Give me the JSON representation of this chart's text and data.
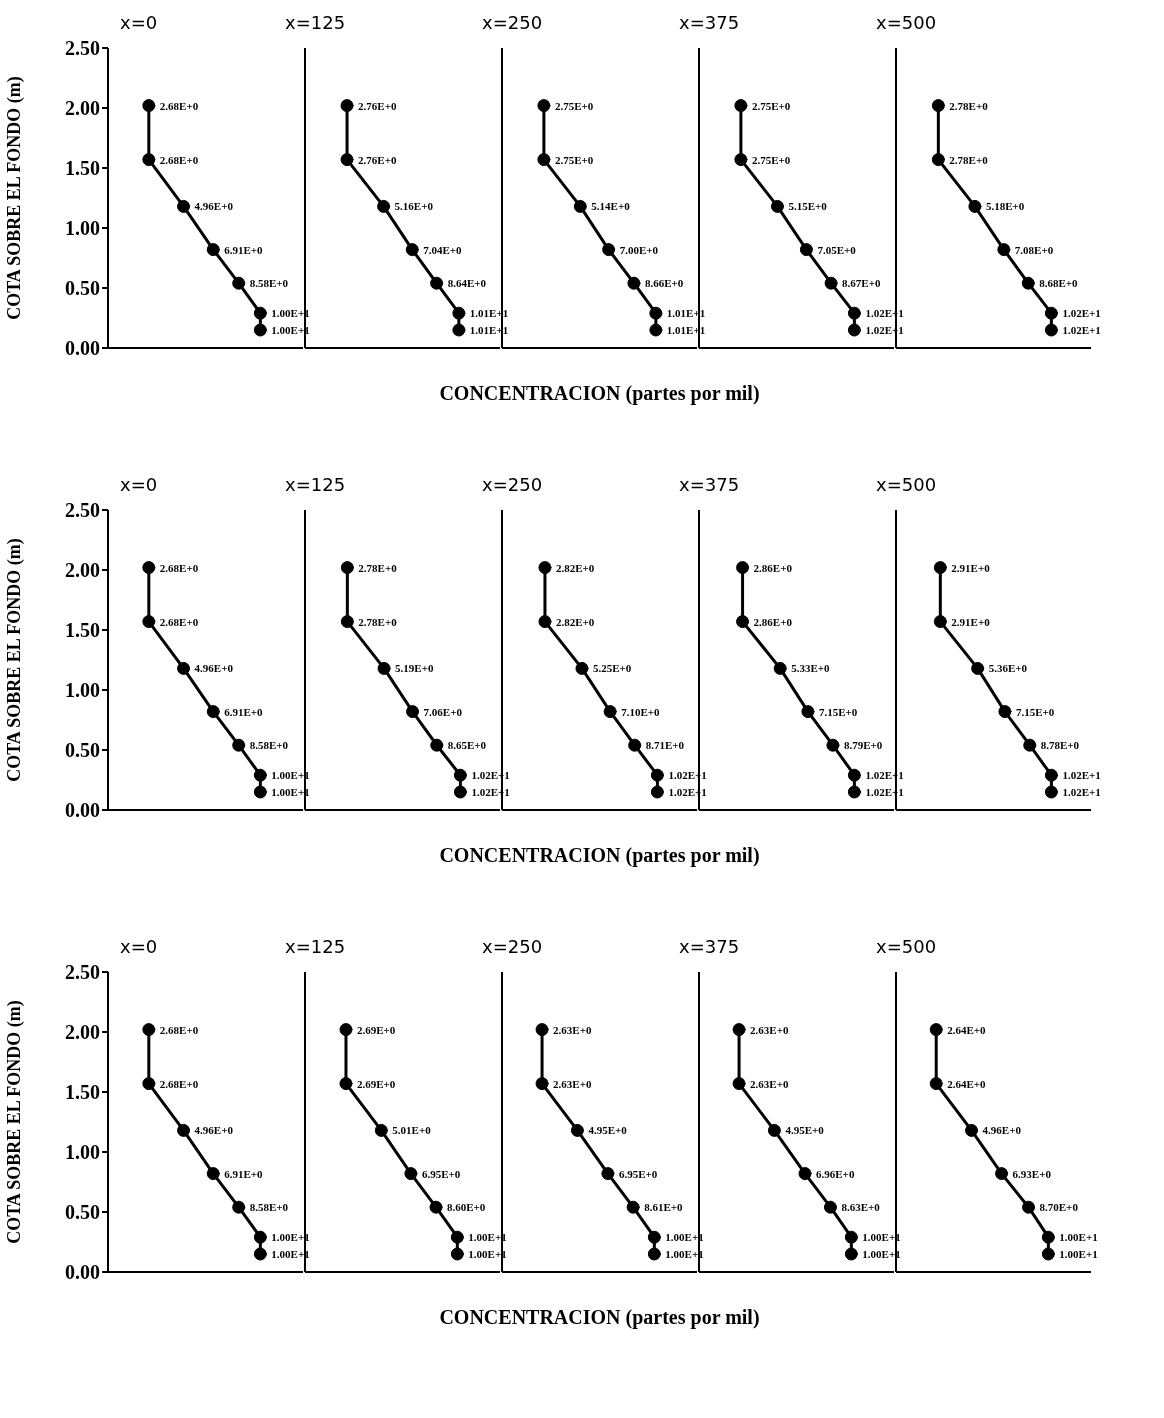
{
  "chart_data": [
    {
      "type": "line",
      "orientation": "horizontal",
      "title": "x=0",
      "ylabel": "COTA SOBRE EL FONDO (m)",
      "xlim": [
        0,
        12.8
      ],
      "ylim": [
        0,
        2.5
      ],
      "yticks": [
        {
          "value": 0,
          "label": "0.00"
        },
        {
          "value": 0.5,
          "label": "0.50"
        },
        {
          "value": 1,
          "label": "1.00"
        },
        {
          "value": 1.5,
          "label": "1.50"
        },
        {
          "value": 2,
          "label": "2.00"
        },
        {
          "value": 2.5,
          "label": "2.50"
        }
      ],
      "tick_labels": "y",
      "marker": "circle",
      "line_style": "solid",
      "series": [
        {
          "color": "#000000",
          "x": [
            2.02,
            1.57,
            1.18,
            0.82,
            0.54,
            0.29,
            0.15
          ],
          "values": [
            2.68,
            2.68,
            4.96,
            6.91,
            8.58,
            10.0,
            10.0
          ],
          "value_labels": [
            "2.68E+0",
            "2.68E+0",
            "4.96E+0",
            "6.91E+0",
            "8.58E+0",
            "1.00E+1",
            "1.00E+1"
          ]
        }
      ]
    },
    {
      "type": "line",
      "orientation": "horizontal",
      "title": "x=125",
      "xlim": [
        0,
        12.8
      ],
      "ylim": [
        0,
        2.5
      ],
      "tick_labels": false,
      "marker": "circle",
      "line_style": "solid",
      "series": [
        {
          "color": "#000000",
          "x": [
            2.02,
            1.57,
            1.18,
            0.82,
            0.54,
            0.29,
            0.15
          ],
          "values": [
            2.76,
            2.76,
            5.16,
            7.04,
            8.64,
            10.1,
            10.1
          ],
          "value_labels": [
            "2.76E+0",
            "2.76E+0",
            "5.16E+0",
            "7.04E+0",
            "8.64E+0",
            "1.01E+1",
            "1.01E+1"
          ]
        }
      ]
    },
    {
      "type": "line",
      "orientation": "horizontal",
      "title": "x=250",
      "xlabel": "CONCENTRACION (partes por mil)",
      "xlim": [
        0,
        12.8
      ],
      "ylim": [
        0,
        2.5
      ],
      "tick_labels": false,
      "marker": "circle",
      "line_style": "solid",
      "series": [
        {
          "color": "#000000",
          "x": [
            2.02,
            1.57,
            1.18,
            0.82,
            0.54,
            0.29,
            0.15
          ],
          "values": [
            2.75,
            2.75,
            5.14,
            7.0,
            8.66,
            10.1,
            10.1
          ],
          "value_labels": [
            "2.75E+0",
            "2.75E+0",
            "5.14E+0",
            "7.00E+0",
            "8.66E+0",
            "1.01E+1",
            "1.01E+1"
          ]
        }
      ]
    },
    {
      "type": "line",
      "orientation": "horizontal",
      "title": "x=375",
      "xlim": [
        0,
        12.8
      ],
      "ylim": [
        0,
        2.5
      ],
      "tick_labels": false,
      "marker": "circle",
      "line_style": "solid",
      "series": [
        {
          "color": "#000000",
          "x": [
            2.02,
            1.57,
            1.18,
            0.82,
            0.54,
            0.29,
            0.15
          ],
          "values": [
            2.75,
            2.75,
            5.15,
            7.05,
            8.67,
            10.2,
            10.2
          ],
          "value_labels": [
            "2.75E+0",
            "2.75E+0",
            "5.15E+0",
            "7.05E+0",
            "8.67E+0",
            "1.02E+1",
            "1.02E+1"
          ]
        }
      ]
    },
    {
      "type": "line",
      "orientation": "horizontal",
      "title": "x=500",
      "xlim": [
        0,
        12.8
      ],
      "ylim": [
        0,
        2.5
      ],
      "tick_labels": false,
      "marker": "circle",
      "line_style": "solid",
      "series": [
        {
          "color": "#000000",
          "x": [
            2.02,
            1.57,
            1.18,
            0.82,
            0.54,
            0.29,
            0.15
          ],
          "values": [
            2.78,
            2.78,
            5.18,
            7.08,
            8.68,
            10.2,
            10.2
          ],
          "value_labels": [
            "2.78E+0",
            "2.78E+0",
            "5.18E+0",
            "7.08E+0",
            "8.68E+0",
            "1.02E+1",
            "1.02E+1"
          ]
        }
      ]
    },
    {
      "type": "line",
      "orientation": "horizontal",
      "title": "x=0",
      "ylabel": "COTA SOBRE EL FONDO (m)",
      "xlim": [
        0,
        12.8
      ],
      "ylim": [
        0,
        2.5
      ],
      "yticks": [
        {
          "value": 0,
          "label": "0.00"
        },
        {
          "value": 0.5,
          "label": "0.50"
        },
        {
          "value": 1,
          "label": "1.00"
        },
        {
          "value": 1.5,
          "label": "1.50"
        },
        {
          "value": 2,
          "label": "2.00"
        },
        {
          "value": 2.5,
          "label": "2.50"
        }
      ],
      "tick_labels": "y",
      "marker": "circle",
      "line_style": "solid",
      "series": [
        {
          "color": "#000000",
          "x": [
            2.02,
            1.57,
            1.18,
            0.82,
            0.54,
            0.29,
            0.15
          ],
          "values": [
            2.68,
            2.68,
            4.96,
            6.91,
            8.58,
            10.0,
            10.0
          ],
          "value_labels": [
            "2.68E+0",
            "2.68E+0",
            "4.96E+0",
            "6.91E+0",
            "8.58E+0",
            "1.00E+1",
            "1.00E+1"
          ]
        }
      ]
    },
    {
      "type": "line",
      "orientation": "horizontal",
      "title": "x=125",
      "xlim": [
        0,
        12.8
      ],
      "ylim": [
        0,
        2.5
      ],
      "tick_labels": false,
      "marker": "circle",
      "line_style": "solid",
      "series": [
        {
          "color": "#000000",
          "x": [
            2.02,
            1.57,
            1.18,
            0.82,
            0.54,
            0.29,
            0.15
          ],
          "values": [
            2.78,
            2.78,
            5.19,
            7.06,
            8.65,
            10.2,
            10.2
          ],
          "value_labels": [
            "2.78E+0",
            "2.78E+0",
            "5.19E+0",
            "7.06E+0",
            "8.65E+0",
            "1.02E+1",
            "1.02E+1"
          ]
        }
      ]
    },
    {
      "type": "line",
      "orientation": "horizontal",
      "title": "x=250",
      "xlabel": "CONCENTRACION (partes por mil)",
      "xlim": [
        0,
        12.8
      ],
      "ylim": [
        0,
        2.5
      ],
      "tick_labels": false,
      "marker": "circle",
      "line_style": "solid",
      "series": [
        {
          "color": "#000000",
          "x": [
            2.02,
            1.57,
            1.18,
            0.82,
            0.54,
            0.29,
            0.15
          ],
          "values": [
            2.82,
            2.82,
            5.25,
            7.1,
            8.71,
            10.2,
            10.2
          ],
          "value_labels": [
            "2.82E+0",
            "2.82E+0",
            "5.25E+0",
            "7.10E+0",
            "8.71E+0",
            "1.02E+1",
            "1.02E+1"
          ]
        }
      ]
    },
    {
      "type": "line",
      "orientation": "horizontal",
      "title": "x=375",
      "xlim": [
        0,
        12.8
      ],
      "ylim": [
        0,
        2.5
      ],
      "tick_labels": false,
      "marker": "circle",
      "line_style": "solid",
      "series": [
        {
          "color": "#000000",
          "x": [
            2.02,
            1.57,
            1.18,
            0.82,
            0.54,
            0.29,
            0.15
          ],
          "values": [
            2.86,
            2.86,
            5.33,
            7.15,
            8.79,
            10.2,
            10.2
          ],
          "value_labels": [
            "2.86E+0",
            "2.86E+0",
            "5.33E+0",
            "7.15E+0",
            "8.79E+0",
            "1.02E+1",
            "1.02E+1"
          ]
        }
      ]
    },
    {
      "type": "line",
      "orientation": "horizontal",
      "title": "x=500",
      "xlim": [
        0,
        12.8
      ],
      "ylim": [
        0,
        2.5
      ],
      "tick_labels": false,
      "marker": "circle",
      "line_style": "solid",
      "series": [
        {
          "color": "#000000",
          "x": [
            2.02,
            1.57,
            1.18,
            0.82,
            0.54,
            0.29,
            0.15
          ],
          "values": [
            2.91,
            2.91,
            5.36,
            7.15,
            8.78,
            10.2,
            10.2
          ],
          "value_labels": [
            "2.91E+0",
            "2.91E+0",
            "5.36E+0",
            "7.15E+0",
            "8.78E+0",
            "1.02E+1",
            "1.02E+1"
          ]
        }
      ]
    },
    {
      "type": "line",
      "orientation": "horizontal",
      "title": "x=0",
      "ylabel": "COTA SOBRE EL FONDO (m)",
      "xlim": [
        0,
        12.8
      ],
      "ylim": [
        0,
        2.5
      ],
      "yticks": [
        {
          "value": 0,
          "label": "0.00"
        },
        {
          "value": 0.5,
          "label": "0.50"
        },
        {
          "value": 1,
          "label": "1.00"
        },
        {
          "value": 1.5,
          "label": "1.50"
        },
        {
          "value": 2,
          "label": "2.00"
        },
        {
          "value": 2.5,
          "label": "2.50"
        }
      ],
      "tick_labels": "y",
      "marker": "circle",
      "line_style": "solid",
      "series": [
        {
          "color": "#000000",
          "x": [
            2.02,
            1.57,
            1.18,
            0.82,
            0.54,
            0.29,
            0.15
          ],
          "values": [
            2.68,
            2.68,
            4.96,
            6.91,
            8.58,
            10.0,
            10.0
          ],
          "value_labels": [
            "2.68E+0",
            "2.68E+0",
            "4.96E+0",
            "6.91E+0",
            "8.58E+0",
            "1.00E+1",
            "1.00E+1"
          ]
        }
      ]
    },
    {
      "type": "line",
      "orientation": "horizontal",
      "title": "x=125",
      "xlim": [
        0,
        12.8
      ],
      "ylim": [
        0,
        2.5
      ],
      "tick_labels": false,
      "marker": "circle",
      "line_style": "solid",
      "series": [
        {
          "color": "#000000",
          "x": [
            2.02,
            1.57,
            1.18,
            0.82,
            0.54,
            0.29,
            0.15
          ],
          "values": [
            2.69,
            2.69,
            5.01,
            6.95,
            8.6,
            10.0,
            10.0
          ],
          "value_labels": [
            "2.69E+0",
            "2.69E+0",
            "5.01E+0",
            "6.95E+0",
            "8.60E+0",
            "1.00E+1",
            "1.00E+1"
          ]
        }
      ]
    },
    {
      "type": "line",
      "orientation": "horizontal",
      "title": "x=250",
      "xlabel": "CONCENTRACION (partes por mil)",
      "xlim": [
        0,
        12.8
      ],
      "ylim": [
        0,
        2.5
      ],
      "tick_labels": false,
      "marker": "circle",
      "line_style": "solid",
      "series": [
        {
          "color": "#000000",
          "x": [
            2.02,
            1.57,
            1.18,
            0.82,
            0.54,
            0.29,
            0.15
          ],
          "values": [
            2.63,
            2.63,
            4.95,
            6.95,
            8.61,
            10.0,
            10.0
          ],
          "value_labels": [
            "2.63E+0",
            "2.63E+0",
            "4.95E+0",
            "6.95E+0",
            "8.61E+0",
            "1.00E+1",
            "1.00E+1"
          ]
        }
      ]
    },
    {
      "type": "line",
      "orientation": "horizontal",
      "title": "x=375",
      "xlim": [
        0,
        12.8
      ],
      "ylim": [
        0,
        2.5
      ],
      "tick_labels": false,
      "marker": "circle",
      "line_style": "solid",
      "series": [
        {
          "color": "#000000",
          "x": [
            2.02,
            1.57,
            1.18,
            0.82,
            0.54,
            0.29,
            0.15
          ],
          "values": [
            2.63,
            2.63,
            4.95,
            6.96,
            8.63,
            10.0,
            10.0
          ],
          "value_labels": [
            "2.63E+0",
            "2.63E+0",
            "4.95E+0",
            "6.96E+0",
            "8.63E+0",
            "1.00E+1",
            "1.00E+1"
          ]
        }
      ]
    },
    {
      "type": "line",
      "orientation": "horizontal",
      "title": "x=500",
      "xlim": [
        0,
        12.8
      ],
      "ylim": [
        0,
        2.5
      ],
      "tick_labels": false,
      "marker": "circle",
      "line_style": "solid",
      "series": [
        {
          "color": "#000000",
          "x": [
            2.02,
            1.57,
            1.18,
            0.82,
            0.54,
            0.29,
            0.15
          ],
          "values": [
            2.64,
            2.64,
            4.96,
            6.93,
            8.7,
            10.0,
            10.0
          ],
          "value_labels": [
            "2.64E+0",
            "2.64E+0",
            "4.96E+0",
            "6.93E+0",
            "8.70E+0",
            "1.00E+1",
            "1.00E+1"
          ]
        }
      ]
    }
  ]
}
